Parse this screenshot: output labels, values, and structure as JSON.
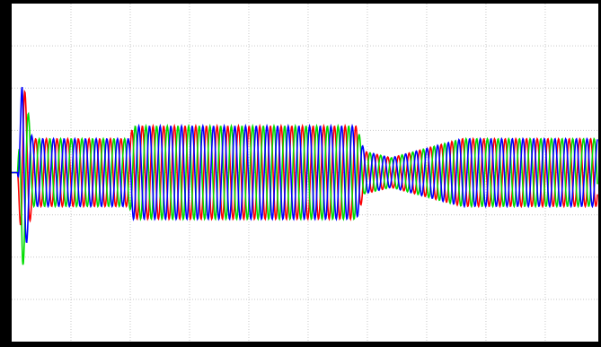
{
  "chart_data": {
    "type": "line",
    "xlim": [
      0,
      9.88
    ],
    "xticks": [
      1,
      2,
      3,
      4,
      5,
      6,
      7,
      8,
      9
    ],
    "ylim": [
      -4,
      4
    ],
    "yticks": [
      -3,
      -2,
      -1,
      0,
      1,
      2,
      3
    ],
    "grid": true,
    "period": 0.18,
    "envelope": {
      "x": [
        0.1,
        0.18,
        0.35,
        1.98,
        2.05,
        5.82,
        5.95,
        6.4,
        7.6,
        9.88
      ],
      "amplitude": [
        0,
        2.3,
        0.8,
        0.8,
        1.1,
        1.1,
        0.5,
        0.35,
        0.8,
        0.8
      ]
    },
    "series": [
      {
        "color": "#ff0000",
        "phase": 0
      },
      {
        "color": "#00dd00",
        "phase": 120
      },
      {
        "color": "#0000ff",
        "phase": 240
      }
    ]
  }
}
